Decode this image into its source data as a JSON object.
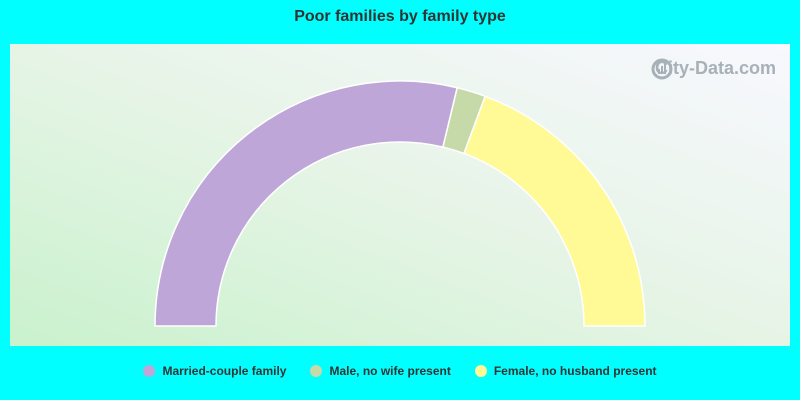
{
  "chart_data": {
    "type": "pie",
    "title": "Poor families by family type",
    "categories": [
      "Married-couple family",
      "Male, no wife present",
      "Female, no husband present"
    ],
    "values": [
      57.5,
      3.8,
      38.7
    ],
    "colors": [
      "#bea7d8",
      "#c6d9a8",
      "#fffa96"
    ],
    "legend_position": "bottom"
  },
  "watermark": {
    "text": "City-Data.com"
  }
}
